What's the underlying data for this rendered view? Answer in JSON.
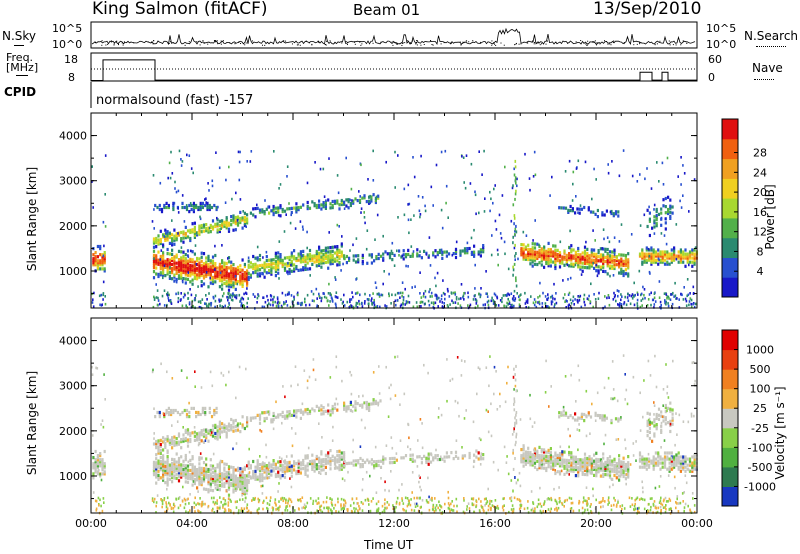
{
  "header": {
    "title": "King Salmon (fitACF)",
    "beam": "Beam 01",
    "date": "13/Sep/2010"
  },
  "aux_panels": {
    "nsky_label": "N.Sky",
    "nsearch_label": "N.Search",
    "noise_ticks": [
      "10^5",
      "10^0"
    ],
    "freq_label_line1": "Freq.",
    "freq_label_line2": "[MHz]",
    "freq_ticks": [
      "18",
      "8"
    ],
    "nave_label": "Nave",
    "nave_ticks": [
      "60",
      "0"
    ],
    "cpid_label": "CPID",
    "cpid_text": "normalsound (fast) -157"
  },
  "chart_data": [
    {
      "type": "heatmap",
      "panel": "power",
      "title": "",
      "ylabel": "Slant Range [km]",
      "xlabel": "",
      "x_ticks": [
        "00:00",
        "04:00",
        "08:00",
        "12:00",
        "16:00",
        "20:00",
        "00:00"
      ],
      "y_ticks": [
        "1000",
        "2000",
        "3000",
        "4000"
      ],
      "ylim": [
        180,
        4500
      ],
      "xlim_hours": [
        0,
        24
      ],
      "colorbar": {
        "label": "Power [dB]",
        "ticks": [
          "4",
          "8",
          "12",
          "16",
          "20",
          "24",
          "28"
        ],
        "colors": [
          "#1818c8",
          "#2850d0",
          "#2a8a70",
          "#52b04a",
          "#a8d830",
          "#f0d020",
          "#f0a020",
          "#f06010",
          "#e01010"
        ]
      }
    },
    {
      "type": "heatmap",
      "panel": "velocity",
      "title": "",
      "ylabel": "Slant Range [km]",
      "xlabel": "Time UT",
      "x_ticks": [
        "00:00",
        "04:00",
        "08:00",
        "12:00",
        "16:00",
        "20:00",
        "00:00"
      ],
      "y_ticks": [
        "1000",
        "2000",
        "3000",
        "4000"
      ],
      "ylim": [
        180,
        4500
      ],
      "xlim_hours": [
        0,
        24
      ],
      "colorbar": {
        "label": "Velocity [m s⁻¹]",
        "ticks": [
          "1000",
          "500",
          "100",
          "25",
          "-25",
          "-100",
          "-500",
          "-1000"
        ],
        "colors": [
          "#1838c0",
          "#2e7a50",
          "#50b040",
          "#88d048",
          "#c8c8c0",
          "#f0b040",
          "#f08020",
          "#e84010",
          "#e00000"
        ]
      }
    }
  ]
}
